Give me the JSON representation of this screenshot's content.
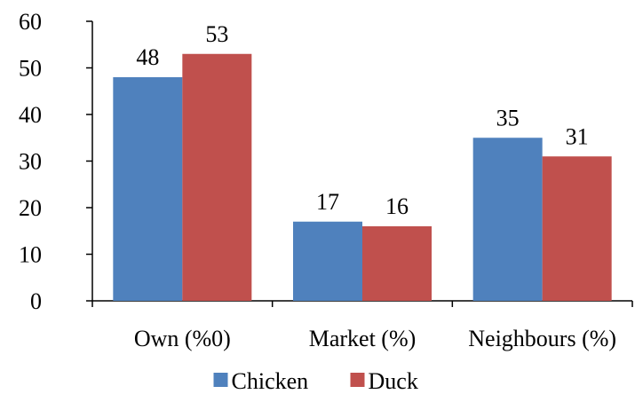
{
  "chart_data": {
    "type": "bar",
    "categories": [
      "Own (%0)",
      "Market (%)",
      "Neighbours (%)"
    ],
    "series": [
      {
        "name": "Chicken",
        "values": [
          48,
          17,
          35
        ],
        "color": "#4F81BD"
      },
      {
        "name": "Duck",
        "values": [
          53,
          16,
          31
        ],
        "color": "#C0504D"
      }
    ],
    "ylim": [
      0,
      60
    ],
    "yticks": [
      0,
      10,
      20,
      30,
      40,
      50,
      60
    ],
    "grid": false,
    "legend_position": "bottom",
    "data_labels": true
  }
}
